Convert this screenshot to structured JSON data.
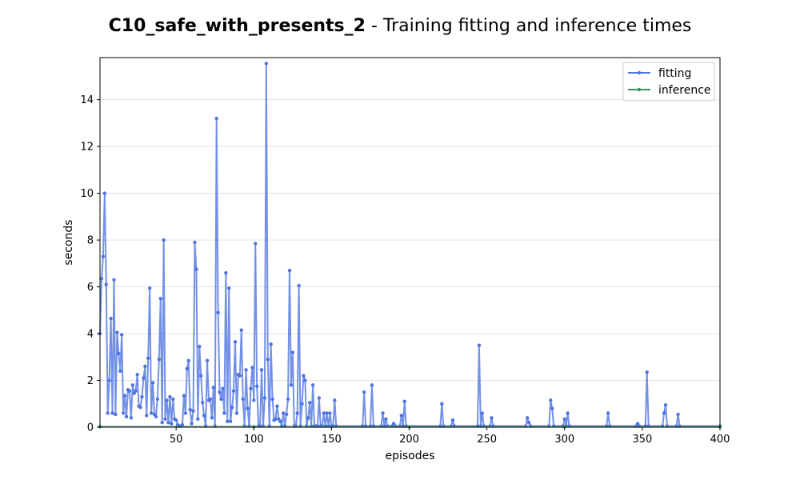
{
  "chart_data": {
    "type": "line",
    "title_bold": "C10_safe_with_presents_2",
    "title_rest": " - Training fitting and inference times",
    "xlabel": "episodes",
    "ylabel": "seconds",
    "xlim": [
      1,
      400
    ],
    "ylim": [
      0,
      15.8
    ],
    "xticks": [
      50,
      100,
      150,
      200,
      250,
      300,
      350,
      400
    ],
    "yticks": [
      0,
      2,
      4,
      6,
      8,
      10,
      12,
      14
    ],
    "grid": "horizontal",
    "legend_position": "top-right",
    "series": [
      {
        "name": "fitting",
        "color": "#4f74e0",
        "points": [
          [
            1,
            4.0
          ],
          [
            2,
            6.35
          ],
          [
            3,
            7.3
          ],
          [
            4,
            10.0
          ],
          [
            5,
            6.1
          ],
          [
            6,
            0.6
          ],
          [
            7,
            2.0
          ],
          [
            8,
            4.65
          ],
          [
            9,
            0.6
          ],
          [
            10,
            6.3
          ],
          [
            11,
            0.55
          ],
          [
            12,
            4.05
          ],
          [
            13,
            3.15
          ],
          [
            14,
            2.4
          ],
          [
            15,
            3.95
          ],
          [
            16,
            0.6
          ],
          [
            17,
            1.35
          ],
          [
            18,
            0.45
          ],
          [
            19,
            1.6
          ],
          [
            20,
            1.55
          ],
          [
            21,
            0.4
          ],
          [
            22,
            1.8
          ],
          [
            23,
            1.45
          ],
          [
            24,
            1.55
          ],
          [
            25,
            2.25
          ],
          [
            26,
            0.9
          ],
          [
            27,
            0.85
          ],
          [
            28,
            1.3
          ],
          [
            29,
            2.1
          ],
          [
            30,
            2.6
          ],
          [
            31,
            0.5
          ],
          [
            32,
            2.95
          ],
          [
            33,
            5.95
          ],
          [
            34,
            0.6
          ],
          [
            35,
            1.9
          ],
          [
            36,
            0.55
          ],
          [
            37,
            0.45
          ],
          [
            38,
            1.2
          ],
          [
            39,
            2.9
          ],
          [
            40,
            5.5
          ],
          [
            41,
            0.2
          ],
          [
            42,
            8.0
          ],
          [
            43,
            0.35
          ],
          [
            44,
            1.15
          ],
          [
            45,
            0.2
          ],
          [
            46,
            1.3
          ],
          [
            47,
            0.15
          ],
          [
            48,
            1.2
          ],
          [
            49,
            0.35
          ],
          [
            50,
            0.3
          ],
          [
            51,
            0.1
          ],
          [
            52,
            0.05
          ],
          [
            53,
            0.05
          ],
          [
            54,
            0.1
          ],
          [
            55,
            1.35
          ],
          [
            56,
            0.6
          ],
          [
            57,
            2.5
          ],
          [
            58,
            2.85
          ],
          [
            59,
            0.75
          ],
          [
            60,
            0.15
          ],
          [
            61,
            0.7
          ],
          [
            62,
            7.9
          ],
          [
            63,
            6.75
          ],
          [
            64,
            0.35
          ],
          [
            65,
            3.45
          ],
          [
            66,
            2.2
          ],
          [
            67,
            1.05
          ],
          [
            68,
            0.5
          ],
          [
            69,
            0.05
          ],
          [
            70,
            2.85
          ],
          [
            71,
            1.15
          ],
          [
            72,
            1.2
          ],
          [
            73,
            0.4
          ],
          [
            74,
            1.7
          ],
          [
            75,
            0.05
          ],
          [
            76,
            13.2
          ],
          [
            77,
            4.9
          ],
          [
            78,
            1.5
          ],
          [
            79,
            1.2
          ],
          [
            80,
            1.65
          ],
          [
            81,
            0.6
          ],
          [
            82,
            6.6
          ],
          [
            83,
            0.25
          ],
          [
            84,
            5.95
          ],
          [
            85,
            0.25
          ],
          [
            86,
            0.85
          ],
          [
            87,
            1.55
          ],
          [
            88,
            3.65
          ],
          [
            89,
            0.6
          ],
          [
            90,
            2.25
          ],
          [
            91,
            2.2
          ],
          [
            92,
            4.15
          ],
          [
            93,
            1.2
          ],
          [
            94,
            0.05
          ],
          [
            95,
            2.45
          ],
          [
            96,
            0.8
          ],
          [
            97,
            0.05
          ],
          [
            98,
            1.65
          ],
          [
            99,
            2.55
          ],
          [
            100,
            1.15
          ],
          [
            101,
            7.85
          ],
          [
            102,
            1.75
          ],
          [
            103,
            0.05
          ],
          [
            104,
            0.05
          ],
          [
            105,
            2.45
          ],
          [
            106,
            0.05
          ],
          [
            107,
            1.25
          ],
          [
            108,
            15.55
          ],
          [
            109,
            2.9
          ],
          [
            110,
            0.05
          ],
          [
            111,
            3.55
          ],
          [
            112,
            1.2
          ],
          [
            113,
            0.3
          ],
          [
            114,
            0.35
          ],
          [
            115,
            0.9
          ],
          [
            116,
            0.35
          ],
          [
            117,
            0.25
          ],
          [
            118,
            0.05
          ],
          [
            119,
            0.6
          ],
          [
            120,
            0.05
          ],
          [
            121,
            0.55
          ],
          [
            122,
            1.2
          ],
          [
            123,
            6.7
          ],
          [
            124,
            1.8
          ],
          [
            125,
            3.2
          ],
          [
            126,
            0.05
          ],
          [
            127,
            0.05
          ],
          [
            128,
            0.6
          ],
          [
            129,
            6.05
          ],
          [
            130,
            0.05
          ],
          [
            131,
            1.0
          ],
          [
            132,
            2.2
          ],
          [
            133,
            2.0
          ],
          [
            134,
            0.05
          ],
          [
            135,
            0.4
          ],
          [
            136,
            1.05
          ],
          [
            137,
            0.05
          ],
          [
            138,
            1.8
          ],
          [
            139,
            0.05
          ],
          [
            140,
            0.05
          ],
          [
            141,
            0.05
          ],
          [
            142,
            1.25
          ],
          [
            143,
            0.05
          ],
          [
            144,
            0.05
          ],
          [
            145,
            0.6
          ],
          [
            146,
            0.05
          ],
          [
            147,
            0.6
          ],
          [
            148,
            0.05
          ],
          [
            149,
            0.6
          ],
          [
            150,
            0.05
          ],
          [
            151,
            0.05
          ],
          [
            152,
            1.15
          ],
          [
            153,
            0.05
          ],
          [
            170,
            0.05
          ],
          [
            171,
            1.5
          ],
          [
            172,
            0.05
          ],
          [
            175,
            0.05
          ],
          [
            176,
            1.8
          ],
          [
            177,
            0.05
          ],
          [
            182,
            0.05
          ],
          [
            183,
            0.6
          ],
          [
            184,
            0.05
          ],
          [
            185,
            0.35
          ],
          [
            186,
            0.05
          ],
          [
            189,
            0.05
          ],
          [
            190,
            0.15
          ],
          [
            191,
            0.05
          ],
          [
            194,
            0.05
          ],
          [
            195,
            0.5
          ],
          [
            196,
            0.05
          ],
          [
            197,
            1.1
          ],
          [
            198,
            0.05
          ],
          [
            220,
            0.05
          ],
          [
            221,
            1.0
          ],
          [
            222,
            0.05
          ],
          [
            227,
            0.05
          ],
          [
            228,
            0.3
          ],
          [
            229,
            0.05
          ],
          [
            244,
            0.05
          ],
          [
            245,
            3.5
          ],
          [
            246,
            0.05
          ],
          [
            247,
            0.6
          ],
          [
            248,
            0.05
          ],
          [
            252,
            0.05
          ],
          [
            253,
            0.4
          ],
          [
            254,
            0.05
          ],
          [
            275,
            0.05
          ],
          [
            276,
            0.4
          ],
          [
            277,
            0.2
          ],
          [
            278,
            0.05
          ],
          [
            290,
            0.05
          ],
          [
            291,
            1.15
          ],
          [
            292,
            0.8
          ],
          [
            293,
            0.05
          ],
          [
            299,
            0.05
          ],
          [
            300,
            0.35
          ],
          [
            301,
            0.05
          ],
          [
            302,
            0.6
          ],
          [
            303,
            0.05
          ],
          [
            327,
            0.05
          ],
          [
            328,
            0.6
          ],
          [
            329,
            0.05
          ],
          [
            346,
            0.05
          ],
          [
            347,
            0.15
          ],
          [
            348,
            0.05
          ],
          [
            352,
            0.05
          ],
          [
            353,
            2.35
          ],
          [
            354,
            0.05
          ],
          [
            363,
            0.05
          ],
          [
            364,
            0.6
          ],
          [
            365,
            0.95
          ],
          [
            366,
            0.05
          ],
          [
            372,
            0.05
          ],
          [
            373,
            0.55
          ],
          [
            374,
            0.05
          ],
          [
            400,
            0.05
          ]
        ]
      },
      {
        "name": "inference",
        "color": "#3d9060",
        "points": [
          [
            1,
            0.02
          ],
          [
            100,
            0.02
          ],
          [
            200,
            0.02
          ],
          [
            300,
            0.02
          ],
          [
            400,
            0.02
          ]
        ]
      }
    ]
  }
}
